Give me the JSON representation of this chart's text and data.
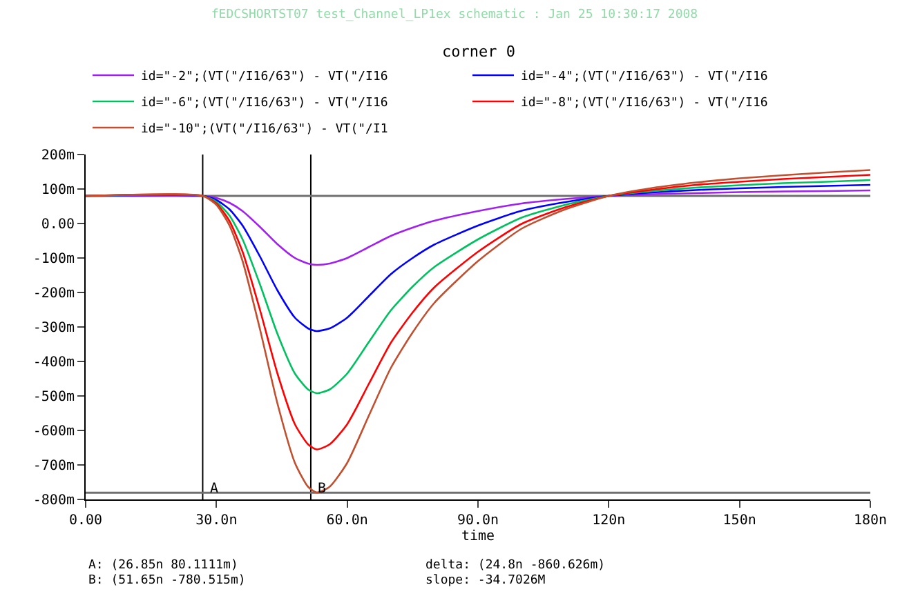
{
  "chart_data": {
    "type": "line",
    "title": "fEDCSHORTST07 test_Channel_LP1ex schematic : Jan 25 10:30:17 2008",
    "subtitle": "corner 0",
    "xlabel": "time",
    "x": [
      0,
      26.85,
      30,
      33,
      36,
      40,
      44,
      48,
      51,
      53,
      56,
      60,
      65,
      70,
      75,
      80,
      90,
      100,
      110,
      120,
      130,
      140,
      150,
      160,
      170,
      180
    ],
    "series": [
      {
        "name": "id=\"-2\";(VT(\"/I16/63\") - VT(\"/I16",
        "color": "#a020f0",
        "values": [
          80,
          80,
          74,
          60,
          36,
          -10,
          -60,
          -100,
          -116,
          -120,
          -116,
          -100,
          -68,
          -36,
          -12,
          8,
          36,
          58,
          71,
          80,
          85,
          88,
          91,
          93,
          94,
          96
        ]
      },
      {
        "name": "id=\"-4\";(VT(\"/I16/63\") - VT(\"/I16",
        "color": "#0000ff",
        "values": [
          80,
          80,
          68,
          41,
          -6,
          -96,
          -194,
          -273,
          -304,
          -312,
          -304,
          -273,
          -210,
          -147,
          -100,
          -61,
          -6,
          37,
          62,
          80,
          90,
          97,
          102,
          106,
          109,
          112
        ]
      },
      {
        "name": "id=\"-6\";(VT(\"/I16/63\") - VT(\"/I16",
        "color": "#00c060",
        "values": [
          80,
          80,
          63,
          23,
          -46,
          -177,
          -320,
          -435,
          -481,
          -492,
          -481,
          -435,
          -343,
          -252,
          -183,
          -126,
          -46,
          17,
          54,
          80,
          94,
          104,
          111,
          117,
          121,
          126
        ]
      },
      {
        "name": "id=\"-8\";(VT(\"/I16/63\") - VT(\"/I16",
        "color": "#ff0000",
        "values": [
          80,
          80,
          58,
          7,
          -82,
          -251,
          -435,
          -582,
          -640,
          -655,
          -640,
          -582,
          -464,
          -346,
          -258,
          -185,
          -82,
          -1,
          47,
          80,
          98,
          112,
          121,
          129,
          135,
          141
        ]
      },
      {
        "name": "id=\"-10\";(VT(\"/I16/63\") - VT(\"/I1",
        "color": "#c0502f",
        "values": [
          80,
          80,
          54,
          -6,
          -109,
          -307,
          -522,
          -694,
          -763,
          -780,
          -763,
          -694,
          -556,
          -419,
          -316,
          -230,
          -109,
          -15,
          41,
          80,
          103,
          119,
          131,
          140,
          148,
          155
        ]
      }
    ],
    "xlim": [
      0,
      180
    ],
    "xticks": [
      {
        "value": 0,
        "label": "0.00"
      },
      {
        "value": 30,
        "label": "30.0n"
      },
      {
        "value": 60,
        "label": "60.0n"
      },
      {
        "value": 90,
        "label": "90.0n"
      },
      {
        "value": 120,
        "label": "120n"
      },
      {
        "value": 150,
        "label": "150n"
      },
      {
        "value": 180,
        "label": "180n"
      }
    ],
    "ylim": [
      -800,
      200
    ],
    "yticks": [
      {
        "value": -800,
        "label": "-800m"
      },
      {
        "value": -700,
        "label": "-700m"
      },
      {
        "value": -600,
        "label": "-600m"
      },
      {
        "value": -500,
        "label": "-500m"
      },
      {
        "value": -400,
        "label": "-400m"
      },
      {
        "value": -300,
        "label": "-300m"
      },
      {
        "value": -200,
        "label": "-200m"
      },
      {
        "value": -100,
        "label": "-100m"
      },
      {
        "value": 0,
        "label": "0.00"
      },
      {
        "value": 100,
        "label": "100m"
      },
      {
        "value": 200,
        "label": "200m"
      }
    ],
    "ref_lines": [
      {
        "axis": "x",
        "value": 26.85,
        "label": "A",
        "color": "#000000"
      },
      {
        "axis": "x",
        "value": 51.65,
        "label": "B",
        "color": "#000000"
      },
      {
        "axis": "y",
        "value": 80.1111,
        "color": "#707070"
      },
      {
        "axis": "y",
        "value": -780.515,
        "color": "#707070"
      }
    ],
    "annotations": [
      "A: (26.85n 80.1111m)",
      "B: (51.65n -780.515m)",
      "delta: (24.8n -860.626m)",
      "slope: -34.7026M"
    ],
    "grid": false,
    "legend": "top"
  }
}
